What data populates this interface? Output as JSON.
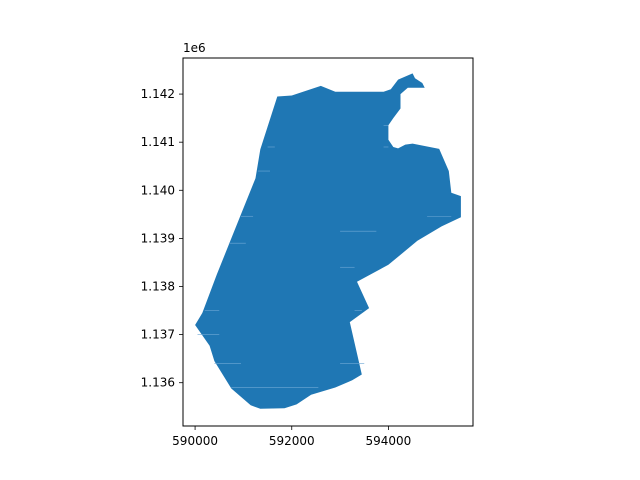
{
  "chart_data": {
    "type": "map",
    "title": "",
    "xlabel": "",
    "ylabel": "",
    "y_offset_label": "1e6",
    "xlim": [
      589750,
      595750
    ],
    "ylim": [
      1135100,
      1142750
    ],
    "x_ticks": [
      {
        "value": 590000,
        "label": "590000"
      },
      {
        "value": 592000,
        "label": "592000"
      },
      {
        "value": 594000,
        "label": "594000"
      }
    ],
    "y_ticks": [
      {
        "value": 1136000,
        "label": "1.136"
      },
      {
        "value": 1137000,
        "label": "1.137"
      },
      {
        "value": 1138000,
        "label": "1.138"
      },
      {
        "value": 1139000,
        "label": "1.139"
      },
      {
        "value": 1140000,
        "label": "1.140"
      },
      {
        "value": 1141000,
        "label": "1.141"
      },
      {
        "value": 1142000,
        "label": "1.142"
      }
    ],
    "grid": false,
    "fill_color": "#1f77b4",
    "polygon": [
      [
        591700,
        1141950
      ],
      [
        592000,
        1141970
      ],
      [
        592600,
        1142170
      ],
      [
        592900,
        1142050
      ],
      [
        593900,
        1142050
      ],
      [
        594050,
        1142100
      ],
      [
        594200,
        1142300
      ],
      [
        594500,
        1142430
      ],
      [
        594550,
        1142330
      ],
      [
        594700,
        1142230
      ],
      [
        594750,
        1142130
      ],
      [
        594400,
        1142130
      ],
      [
        594250,
        1142000
      ],
      [
        594250,
        1141700
      ],
      [
        594100,
        1141500
      ],
      [
        594000,
        1141350
      ],
      [
        594000,
        1141050
      ],
      [
        594100,
        1140900
      ],
      [
        594200,
        1140870
      ],
      [
        594350,
        1140950
      ],
      [
        594500,
        1140970
      ],
      [
        595050,
        1140860
      ],
      [
        595250,
        1140400
      ],
      [
        595300,
        1139950
      ],
      [
        595500,
        1139880
      ],
      [
        595500,
        1139440
      ],
      [
        595100,
        1139250
      ],
      [
        594600,
        1138950
      ],
      [
        594000,
        1138450
      ],
      [
        593350,
        1138100
      ],
      [
        593600,
        1137550
      ],
      [
        593200,
        1137260
      ],
      [
        593450,
        1136170
      ],
      [
        593250,
        1136050
      ],
      [
        592900,
        1135900
      ],
      [
        592400,
        1135750
      ],
      [
        592100,
        1135550
      ],
      [
        591850,
        1135470
      ],
      [
        591350,
        1135460
      ],
      [
        591150,
        1135530
      ],
      [
        590750,
        1135880
      ],
      [
        590400,
        1136450
      ],
      [
        590300,
        1136770
      ],
      [
        590000,
        1137200
      ],
      [
        590150,
        1137450
      ],
      [
        590450,
        1138250
      ],
      [
        590950,
        1139500
      ],
      [
        591250,
        1140250
      ],
      [
        591350,
        1140850
      ]
    ]
  }
}
